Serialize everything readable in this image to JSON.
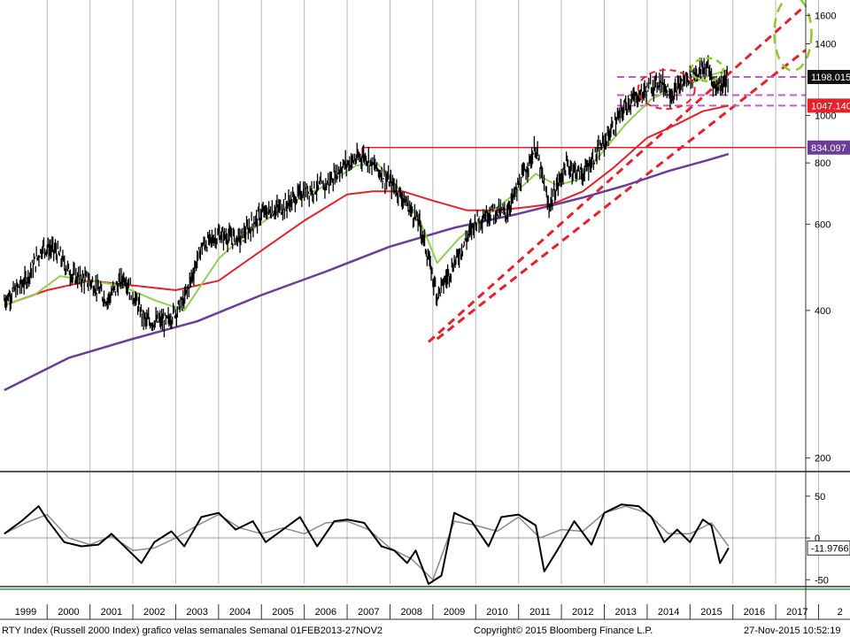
{
  "chart_data": [
    {
      "type": "line",
      "panel": "price",
      "title": "",
      "scale": "log",
      "ylim": [
        190,
        1720
      ],
      "xlim": [
        1998.9,
        2017.7
      ],
      "yticks": [
        200,
        400,
        600,
        800,
        1000,
        1400,
        1600
      ],
      "xticks": [
        "1999",
        "2000",
        "2001",
        "2002",
        "2003",
        "2004",
        "2005",
        "2006",
        "2007",
        "2008",
        "2009",
        "2010",
        "2011",
        "2012",
        "2013",
        "2014",
        "2015",
        "2016",
        "2017",
        "2"
      ],
      "colors": {
        "price": "#000000",
        "ma_short": "#8fd14f",
        "ma_mid": "#e8202a",
        "ma_long": "#6a3d9a",
        "channel": "#e8202a",
        "level": "#cc55cc",
        "target": "#88cc22"
      },
      "series": [
        {
          "x": [
            1999.0,
            1999.5,
            1999.9,
            2000.2,
            2000.6,
            2001.0,
            2001.4,
            2001.8,
            2002.3,
            2002.8,
            2003.2,
            2003.6,
            2004.0,
            2004.5,
            2005.0,
            2005.5,
            2006.0,
            2006.5,
            2006.9,
            2007.4,
            2007.8,
            2008.2,
            2008.7,
            2009.1,
            2009.5,
            2010.0,
            2010.4,
            2010.7,
            2011.1,
            2011.4,
            2011.7,
            2012.1,
            2012.5,
            2013.0,
            2013.5,
            2014.0,
            2014.3,
            2014.6,
            2014.9,
            2015.2,
            2015.4,
            2015.6,
            2015.9
          ],
          "values": [
            420,
            460,
            540,
            530,
            470,
            460,
            420,
            470,
            380,
            380,
            420,
            540,
            570,
            560,
            630,
            650,
            700,
            720,
            790,
            830,
            760,
            700,
            600,
            430,
            500,
            610,
            640,
            630,
            750,
            860,
            650,
            790,
            760,
            880,
            1050,
            1130,
            1180,
            1100,
            1190,
            1230,
            1260,
            1140,
            1198
          ]
        },
        {
          "x": [
            1999.0,
            1999.7,
            2000.3,
            2001.0,
            2001.7,
            2002.5,
            2003.2,
            2004.0,
            2004.6,
            2005.2,
            2005.8,
            2006.5,
            2007.2,
            2007.7,
            2008.2,
            2008.7,
            2009.1,
            2009.6,
            2010.2,
            2010.8,
            2011.4,
            2011.9,
            2012.4,
            2012.9,
            2013.5,
            2014.1,
            2014.6,
            2015.1,
            2015.5,
            2015.8
          ],
          "values": [
            410,
            430,
            470,
            460,
            450,
            420,
            400,
            510,
            570,
            620,
            670,
            720,
            790,
            800,
            710,
            610,
            500,
            560,
            620,
            680,
            760,
            720,
            740,
            830,
            960,
            1080,
            1130,
            1170,
            1210,
            1230
          ]
        },
        {
          "x": [
            1999.0,
            2000.0,
            2001.0,
            2002.0,
            2003.0,
            2004.0,
            2005.0,
            2006.0,
            2007.0,
            2007.6,
            2008.3,
            2009.0,
            2009.8,
            2010.5,
            2011.2,
            2011.8,
            2012.5,
            2013.2,
            2014.0,
            2014.7,
            2015.3,
            2015.9
          ],
          "values": [
            410,
            440,
            460,
            450,
            440,
            460,
            530,
            610,
            690,
            700,
            700,
            670,
            640,
            640,
            650,
            660,
            700,
            780,
            900,
            960,
            1020,
            1047
          ]
        },
        {
          "x": [
            1999.0,
            2000.5,
            2002.0,
            2003.5,
            2005.0,
            2006.5,
            2008.0,
            2009.5,
            2011.0,
            2012.5,
            2013.5,
            2014.5,
            2015.4,
            2015.9
          ],
          "values": [
            275,
            320,
            350,
            380,
            430,
            480,
            540,
            590,
            630,
            680,
            720,
            770,
            810,
            834
          ]
        }
      ],
      "last_values": [
        "1198.015",
        "1047.140",
        "834.097"
      ],
      "levels": [
        1198.015,
        1100,
        1047.14
      ],
      "resistance": 860
    },
    {
      "type": "line",
      "panel": "oscillator",
      "ylim": [
        -55,
        72
      ],
      "yticks": [
        50,
        0,
        -50
      ],
      "tick_labels": [
        "50",
        "0",
        "-50"
      ],
      "current_value": "-11.9766",
      "series": [
        {
          "x": [
            1999.0,
            1999.4,
            1999.8,
            2000.0,
            2000.4,
            2000.8,
            2001.2,
            2001.5,
            2001.9,
            2002.2,
            2002.5,
            2002.9,
            2003.2,
            2003.6,
            2004.0,
            2004.4,
            2004.8,
            2005.1,
            2005.5,
            2005.9,
            2006.3,
            2006.7,
            2007.0,
            2007.4,
            2007.8,
            2008.1,
            2008.4,
            2008.6,
            2008.9,
            2009.2,
            2009.5,
            2009.9,
            2010.3,
            2010.6,
            2011.0,
            2011.4,
            2011.6,
            2011.9,
            2012.3,
            2012.7,
            2013.0,
            2013.4,
            2013.8,
            2014.1,
            2014.4,
            2014.7,
            2015.0,
            2015.3,
            2015.5,
            2015.7,
            2015.9
          ],
          "values": [
            5,
            20,
            38,
            22,
            -5,
            -10,
            -8,
            5,
            -15,
            -30,
            -5,
            8,
            -10,
            25,
            30,
            10,
            20,
            -5,
            10,
            25,
            -10,
            20,
            22,
            18,
            -10,
            -15,
            -30,
            -15,
            -55,
            -45,
            30,
            20,
            -10,
            25,
            28,
            15,
            -40,
            -15,
            20,
            -8,
            30,
            40,
            38,
            25,
            -5,
            10,
            -5,
            22,
            15,
            -30,
            -12
          ]
        },
        {
          "x": [
            1999.0,
            1999.5,
            2000.0,
            2000.5,
            2001.0,
            2001.5,
            2002.0,
            2002.5,
            2003.0,
            2003.5,
            2004.0,
            2004.5,
            2005.0,
            2005.5,
            2006.0,
            2006.5,
            2007.0,
            2007.5,
            2008.0,
            2008.5,
            2009.0,
            2009.5,
            2010.0,
            2010.5,
            2011.0,
            2011.5,
            2012.0,
            2012.5,
            2013.0,
            2013.5,
            2014.0,
            2014.5,
            2015.0,
            2015.5,
            2015.9
          ],
          "values": [
            5,
            18,
            28,
            0,
            -8,
            2,
            -15,
            -12,
            0,
            15,
            28,
            12,
            5,
            12,
            5,
            18,
            20,
            10,
            -12,
            -25,
            -50,
            20,
            15,
            8,
            25,
            0,
            10,
            8,
            30,
            38,
            30,
            5,
            5,
            18,
            -10
          ]
        }
      ]
    }
  ],
  "footer": {
    "left": "RTY Index (Russell 2000 Index) grafico velas semanales  Semanal 01FEB2013-27NOV2",
    "center": "Copyright© 2015 Bloomberg Finance L.P.",
    "right": "27-Nov-2015 10:52:19"
  }
}
